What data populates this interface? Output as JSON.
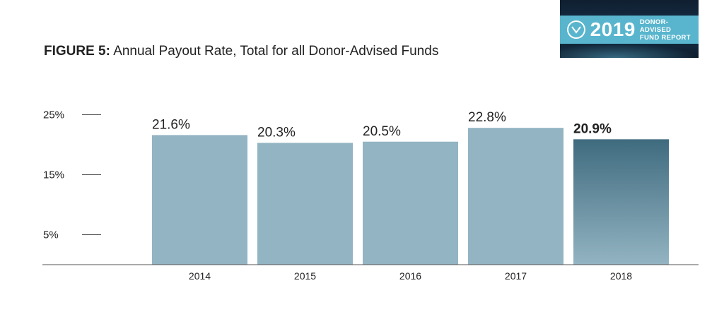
{
  "header": {
    "figure_label": "FIGURE 5:",
    "title": "Annual Payout Rate, Total for all Donor-Advised Funds"
  },
  "badge": {
    "year": "2019",
    "line1": "DONOR-ADVISED",
    "line2": "FUND REPORT",
    "icon": "checkmark-v-icon"
  },
  "chart_data": {
    "type": "bar",
    "title": "Annual Payout Rate, Total for all Donor-Advised Funds",
    "xlabel": "",
    "ylabel": "",
    "categories": [
      "2014",
      "2015",
      "2016",
      "2017",
      "2018"
    ],
    "values": [
      21.6,
      20.3,
      20.5,
      22.8,
      20.9
    ],
    "value_labels": [
      "21.6%",
      "20.3%",
      "20.5%",
      "22.8%",
      "20.9%"
    ],
    "highlighted_index": 4,
    "yticks": [
      5,
      15,
      25
    ],
    "ytick_labels": [
      "5%",
      "15%",
      "25%"
    ],
    "ylim": [
      0,
      25
    ],
    "grid": false,
    "legend": "none",
    "colors": {
      "bar": "#93b4c2",
      "highlight_top": "#3f6b7f",
      "highlight_bottom": "#93b4c2",
      "axis": "#555555",
      "text": "#222222"
    }
  }
}
